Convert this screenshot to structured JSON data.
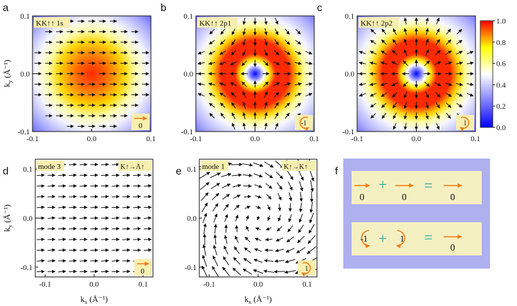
{
  "figure": {
    "panel_letters": [
      "a",
      "b",
      "c",
      "d",
      "e",
      "f"
    ],
    "colors": {
      "arrow": "#111111",
      "badge_bg": "#f7eeb0",
      "orange": "#f07a10",
      "teal": "#2aa6a6",
      "f_bg": "#aeb0f0",
      "f_box": "#f5f0c2"
    }
  },
  "chart_data": [
    {
      "type": "heatmap",
      "panel": "a",
      "label": "KK↑↑ 1s",
      "winding_badge": "0",
      "x_ticks": [
        "-0.1",
        "0.0",
        "0.1"
      ],
      "y_ticks": [
        "0.1",
        "0.0",
        "-0.1"
      ],
      "ylabel": "k",
      "ylabel_sub": "y",
      "ylabel_unit": " (Å⁻¹)",
      "xlim": [
        -0.1,
        0.1
      ],
      "ylim": [
        -0.1,
        0.1
      ],
      "profile": "gaussian",
      "vector_winding": 0
    },
    {
      "type": "heatmap",
      "panel": "b",
      "label": "KK↑↑ 2p1",
      "winding_badge": "-1",
      "x_ticks": [
        "-0.1",
        "0.0",
        "0.1"
      ],
      "y_ticks": [
        "0.1",
        "0.0",
        "-0.1"
      ],
      "xlim": [
        -0.1,
        0.1
      ],
      "ylim": [
        -0.1,
        0.1
      ],
      "profile": "ring",
      "vector_winding": -1
    },
    {
      "type": "heatmap",
      "panel": "c",
      "label": "KK↑↑ 2p2",
      "winding_badge": "1",
      "x_ticks": [
        "-0.1",
        "0.0",
        "0.1"
      ],
      "y_ticks": [
        "0.1",
        "0.0",
        "-0.1"
      ],
      "xlim": [
        -0.1,
        0.1
      ],
      "ylim": [
        -0.1,
        0.1
      ],
      "profile": "ring",
      "vector_winding": 1,
      "colorbar": {
        "ticks": [
          "1.0",
          "0.8",
          "0.6",
          "0.4",
          "0.2",
          "0.0"
        ],
        "range": [
          0.0,
          1.0
        ],
        "colormap": [
          "#0000ff",
          "#ffffff",
          "#ffff00",
          "#ff0000"
        ]
      }
    },
    {
      "type": "scatter",
      "panel": "d",
      "label": "mode 3",
      "transition": "K↑→Λ↑",
      "winding_badge": "0",
      "x_ticks": [
        "-0.1",
        "0.0",
        "0.1"
      ],
      "y_ticks": [
        "0.1",
        "0.0",
        "-0.1"
      ],
      "xlabel": "k",
      "xlabel_sub": "x",
      "xlabel_unit": " (Å⁻¹)",
      "ylabel": "k",
      "ylabel_sub": "y",
      "ylabel_unit": " (Å⁻¹)",
      "xlim": [
        -0.12,
        0.12
      ],
      "ylim": [
        -0.12,
        0.12
      ],
      "vector_winding": 0
    },
    {
      "type": "scatter",
      "panel": "e",
      "label": "mode 1",
      "transition": "K↑→K↑",
      "winding_badge": "1",
      "x_ticks": [
        "-0.1",
        "0.0",
        "0.1"
      ],
      "y_ticks": [
        "0.1",
        "0.0",
        "-0.1"
      ],
      "xlabel": "k",
      "xlabel_sub": "x",
      "xlabel_unit": " (Å⁻¹)",
      "xlim": [
        -0.12,
        0.12
      ],
      "ylim": [
        -0.12,
        0.12
      ],
      "vector_winding": 1
    }
  ],
  "panel_f": {
    "row1": {
      "a": "0",
      "op1": "+",
      "b": "0",
      "op2": "=",
      "c": "0"
    },
    "row2": {
      "a": "-1",
      "op1": "+",
      "b": "1",
      "op2": "=",
      "c": "0"
    }
  }
}
